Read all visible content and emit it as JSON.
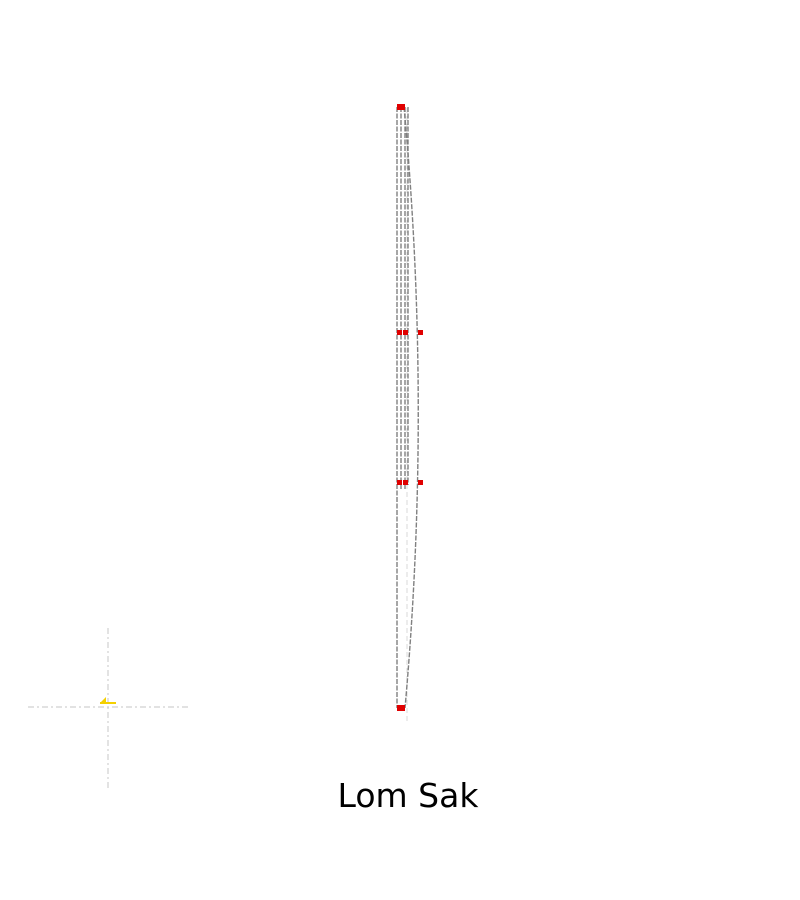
{
  "caption": "Lom Sak",
  "colors": {
    "background": "#ffffff",
    "outline": "#808080",
    "guide": "#d0d0d0",
    "node": "#e00000",
    "marker": "#f4d000",
    "caption": "#000000"
  },
  "icons": {
    "origin_marker": "origin-marker-icon",
    "node_handle": "node-handle-icon"
  }
}
